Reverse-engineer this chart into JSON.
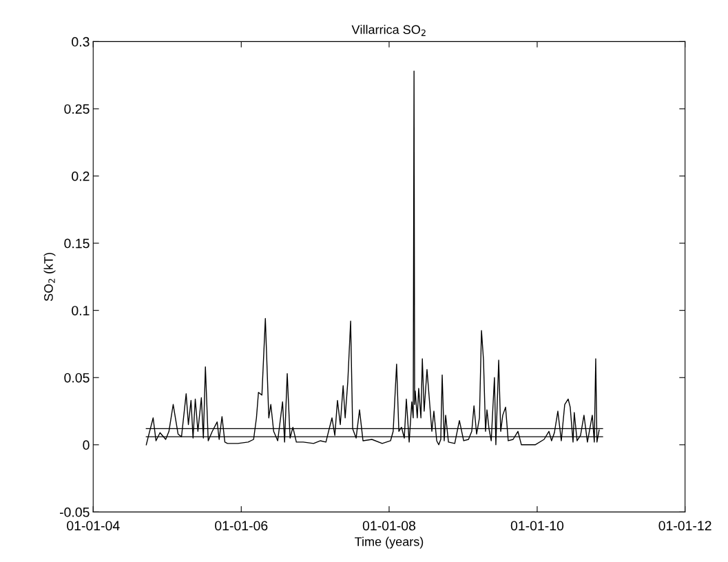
{
  "chart_data": {
    "type": "line",
    "title": "Villarrica SO$_{2}$",
    "xlabel": "Time (years)",
    "ylabel": "SO$_{2}$ (kT)",
    "xlim": [
      "2004-01-01",
      "2012-01-01"
    ],
    "ylim": [
      -0.05,
      0.3
    ],
    "xticks": [
      {
        "value": "2004-01-01",
        "label": "01-01-04"
      },
      {
        "value": "2006-01-01",
        "label": "01-01-06"
      },
      {
        "value": "2008-01-01",
        "label": "01-01-08"
      },
      {
        "value": "2010-01-01",
        "label": "01-01-10"
      },
      {
        "value": "2012-01-01",
        "label": "01-01-12"
      }
    ],
    "yticks": [
      -0.05,
      0,
      0.05,
      0.1,
      0.15,
      0.2,
      0.25,
      0.3
    ],
    "grid": false,
    "marker": "none",
    "line_style": "solid",
    "series": [
      {
        "color": "#000000",
        "x": [
          "2004-09-19",
          "2004-09-29",
          "2004-10-23",
          "2004-11-06",
          "2004-11-26",
          "2004-12-24",
          "2005-01-09",
          "2005-01-30",
          "2005-02-23",
          "2005-03-12",
          "2005-04-04",
          "2005-04-15",
          "2005-04-28",
          "2005-05-08",
          "2005-05-19",
          "2005-06-01",
          "2005-06-18",
          "2005-06-28",
          "2005-07-08",
          "2005-07-22",
          "2005-08-11",
          "2005-09-04",
          "2005-09-14",
          "2005-09-28",
          "2005-10-12",
          "2005-10-25",
          "2005-12-15",
          "2006-02-04",
          "2006-03-03",
          "2006-03-17",
          "2006-03-27",
          "2006-04-13",
          "2006-04-30",
          "2006-05-17",
          "2006-05-27",
          "2006-06-10",
          "2006-06-30",
          "2006-07-10",
          "2006-07-24",
          "2006-08-03",
          "2006-08-16",
          "2006-08-30",
          "2006-09-13",
          "2006-09-30",
          "2006-11-03",
          "2006-12-24",
          "2007-01-27",
          "2007-02-23",
          "2007-03-08",
          "2007-03-25",
          "2007-04-08",
          "2007-04-21",
          "2007-05-05",
          "2007-05-19",
          "2007-05-29",
          "2007-06-11",
          "2007-06-25",
          "2007-07-05",
          "2007-07-22",
          "2007-08-08",
          "2007-08-25",
          "2007-10-08",
          "2007-11-28",
          "2008-01-08",
          "2008-01-21",
          "2008-02-07",
          "2008-02-18",
          "2008-03-02",
          "2008-03-16",
          "2008-03-26",
          "2008-04-09",
          "2008-04-22",
          "2008-04-29",
          "2008-05-03",
          "2008-05-06",
          "2008-05-09",
          "2008-05-19",
          "2008-05-26",
          "2008-06-06",
          "2008-06-13",
          "2008-06-22",
          "2008-07-06",
          "2008-07-17",
          "2008-07-30",
          "2008-08-09",
          "2008-08-23",
          "2008-09-02",
          "2008-09-12",
          "2008-09-19",
          "2008-09-29",
          "2008-10-06",
          "2008-10-20",
          "2008-11-20",
          "2008-12-13",
          "2009-01-03",
          "2009-01-27",
          "2009-02-12",
          "2009-02-23",
          "2009-03-08",
          "2009-03-22",
          "2009-04-01",
          "2009-04-11",
          "2009-04-21",
          "2009-04-28",
          "2009-05-08",
          "2009-05-19",
          "2009-06-04",
          "2009-06-11",
          "2009-06-25",
          "2009-07-05",
          "2009-07-15",
          "2009-07-29",
          "2009-08-11",
          "2009-09-04",
          "2009-09-28",
          "2009-10-15",
          "2009-12-22",
          "2010-02-04",
          "2010-02-28",
          "2010-03-13",
          "2010-03-27",
          "2010-04-13",
          "2010-04-30",
          "2010-05-17",
          "2010-06-03",
          "2010-06-13",
          "2010-06-27",
          "2010-07-03",
          "2010-07-17",
          "2010-08-03",
          "2010-08-20",
          "2010-09-06",
          "2010-09-30",
          "2010-10-10",
          "2010-10-17",
          "2010-10-23",
          "2010-11-03"
        ],
        "values": [
          0.0,
          0.006,
          0.02,
          0.003,
          0.009,
          0.004,
          0.01,
          0.03,
          0.008,
          0.006,
          0.038,
          0.015,
          0.033,
          0.005,
          0.034,
          0.01,
          0.035,
          0.005,
          0.058,
          0.003,
          0.01,
          0.017,
          0.004,
          0.021,
          0.002,
          0.001,
          0.001,
          0.002,
          0.004,
          0.02,
          0.039,
          0.037,
          0.094,
          0.02,
          0.03,
          0.01,
          0.003,
          0.015,
          0.032,
          0.002,
          0.053,
          0.005,
          0.013,
          0.002,
          0.002,
          0.001,
          0.003,
          0.002,
          0.01,
          0.02,
          0.007,
          0.033,
          0.015,
          0.044,
          0.02,
          0.047,
          0.092,
          0.012,
          0.005,
          0.026,
          0.003,
          0.004,
          0.001,
          0.003,
          0.01,
          0.06,
          0.01,
          0.013,
          0.005,
          0.034,
          0.002,
          0.032,
          0.02,
          0.278,
          0.03,
          0.04,
          0.02,
          0.042,
          0.02,
          0.064,
          0.025,
          0.056,
          0.035,
          0.01,
          0.025,
          0.003,
          0.0,
          0.004,
          0.052,
          0.003,
          0.022,
          0.002,
          0.001,
          0.018,
          0.003,
          0.004,
          0.01,
          0.029,
          0.008,
          0.02,
          0.085,
          0.063,
          0.01,
          0.026,
          0.012,
          0.003,
          0.05,
          0.0,
          0.063,
          0.01,
          0.022,
          0.028,
          0.003,
          0.004,
          0.01,
          0.0,
          0.0,
          0.004,
          0.01,
          0.003,
          0.009,
          0.025,
          0.003,
          0.03,
          0.034,
          0.028,
          0.002,
          0.024,
          0.003,
          0.007,
          0.022,
          0.002,
          0.022,
          0.002,
          0.064,
          0.002,
          0.011
        ]
      },
      {
        "color": "#000000",
        "x": [
          "2004-09-19",
          "2010-11-20"
        ],
        "values": [
          0.012,
          0.012
        ]
      },
      {
        "color": "#000000",
        "x": [
          "2004-09-19",
          "2010-11-20"
        ],
        "values": [
          0.006,
          0.006
        ]
      }
    ]
  }
}
